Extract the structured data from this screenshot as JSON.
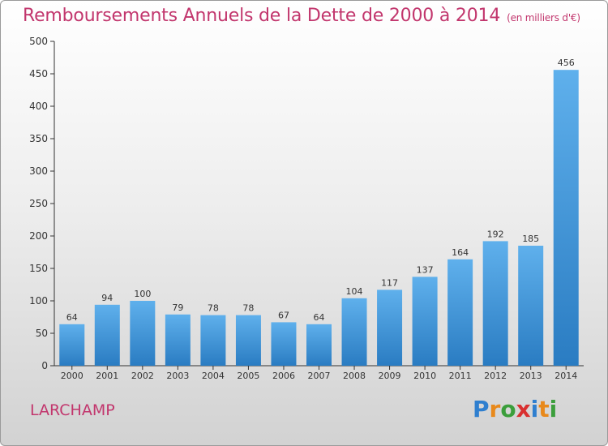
{
  "header": {
    "title": "Remboursements Annuels de la Dette de 2000 à 2014",
    "unit": "(en milliers d'€)"
  },
  "footer": {
    "commune": "LARCHAMP",
    "logo_letters": [
      {
        "char": "P",
        "color": "#2f7fcf"
      },
      {
        "char": "r",
        "color": "#e8891b"
      },
      {
        "char": "o",
        "color": "#3b9e3b"
      },
      {
        "char": "x",
        "color": "#d93030"
      },
      {
        "char": "i",
        "color": "#2f7fcf"
      },
      {
        "char": "t",
        "color": "#e8891b"
      },
      {
        "char": "i",
        "color": "#3b9e3b"
      }
    ]
  },
  "chart_data": {
    "type": "bar",
    "title": "Remboursements Annuels de la Dette de 2000 à 2014",
    "xlabel": "",
    "ylabel": "",
    "categories": [
      "2000",
      "2001",
      "2002",
      "2003",
      "2004",
      "2005",
      "2006",
      "2007",
      "2008",
      "2009",
      "2010",
      "2011",
      "2012",
      "2013",
      "2014"
    ],
    "values": [
      64,
      94,
      100,
      79,
      78,
      78,
      67,
      64,
      104,
      117,
      137,
      164,
      192,
      185,
      456
    ],
    "ylim": [
      0,
      500
    ],
    "yticks": [
      0,
      50,
      100,
      150,
      200,
      250,
      300,
      350,
      400,
      450,
      500
    ],
    "grid": false,
    "colors": {
      "bar_light": "#5fb0ec",
      "bar_dark": "#2a7cc2",
      "axis": "#333333",
      "text": "#333333"
    }
  }
}
